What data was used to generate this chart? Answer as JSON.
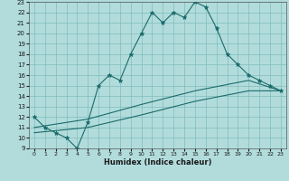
{
  "xlabel": "Humidex (Indice chaleur)",
  "bg_color": "#b2dcdc",
  "grid_color": "#80bcbc",
  "line_color": "#1a6b6b",
  "xlim": [
    -0.5,
    23.5
  ],
  "ylim": [
    9,
    23
  ],
  "yticks": [
    9,
    10,
    11,
    12,
    13,
    14,
    15,
    16,
    17,
    18,
    19,
    20,
    21,
    22,
    23
  ],
  "xticks": [
    0,
    1,
    2,
    3,
    4,
    5,
    6,
    7,
    8,
    9,
    10,
    11,
    12,
    13,
    14,
    15,
    16,
    17,
    18,
    19,
    20,
    21,
    22,
    23
  ],
  "curve1_x": [
    0,
    1,
    2,
    3,
    4,
    5,
    6,
    7,
    8,
    9,
    10,
    11,
    12,
    13,
    14,
    15,
    16,
    17,
    18,
    19,
    20,
    21,
    22,
    23
  ],
  "curve1_y": [
    12.0,
    11.0,
    10.5,
    10.0,
    9.0,
    11.5,
    15.0,
    16.0,
    15.5,
    18.0,
    20.0,
    22.0,
    21.0,
    22.0,
    21.5,
    23.0,
    22.5,
    20.5,
    18.0,
    17.0,
    16.0,
    15.5,
    15.0,
    14.5
  ],
  "curve2_x": [
    0,
    5,
    10,
    15,
    20,
    23
  ],
  "curve2_y": [
    11.0,
    11.8,
    13.2,
    14.5,
    15.5,
    14.5
  ],
  "curve3_x": [
    0,
    5,
    10,
    15,
    20,
    23
  ],
  "curve3_y": [
    10.5,
    11.0,
    12.2,
    13.5,
    14.5,
    14.5
  ]
}
